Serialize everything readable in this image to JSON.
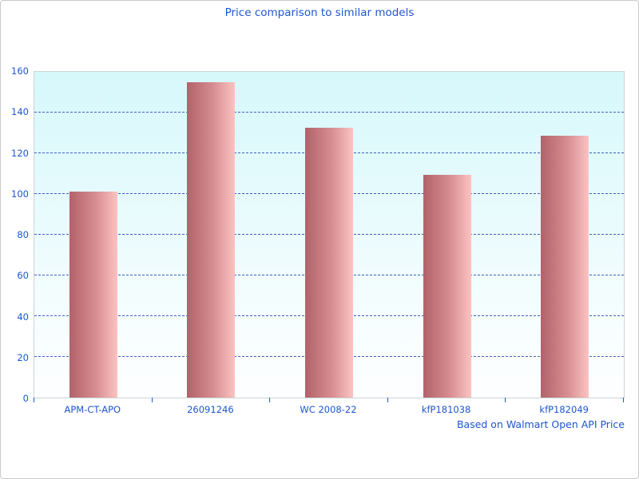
{
  "page": {
    "accent_color": "#1d55d0"
  },
  "chart_data": {
    "type": "bar",
    "title": "Price comparison to similar models",
    "categories": [
      "APM-CT-APO",
      "26091246",
      "WC 2008-22",
      "kfP181038",
      "kfP182049"
    ],
    "values": [
      101,
      155,
      132.5,
      109.5,
      128.5
    ],
    "xlabel": "",
    "ylabel": "",
    "ylim": [
      0,
      160
    ],
    "ytick_step": 20,
    "ytick_labels": [
      "0",
      "20",
      "40",
      "60",
      "80",
      "100",
      "120",
      "140",
      "160"
    ],
    "grid": "horizontal-dashed",
    "legend": "none",
    "annotation": "Based on Walmart Open API Price",
    "colors": {
      "bar_gradient_left": "#b2626a",
      "bar_gradient_right": "#fbc3c1",
      "plot_bg_top": "#d6f8fb",
      "plot_bg_bottom": "#fdfeff",
      "gridline": "#3e5ec4",
      "text": "#1d55d0",
      "frame": "#ccd4d8"
    }
  }
}
